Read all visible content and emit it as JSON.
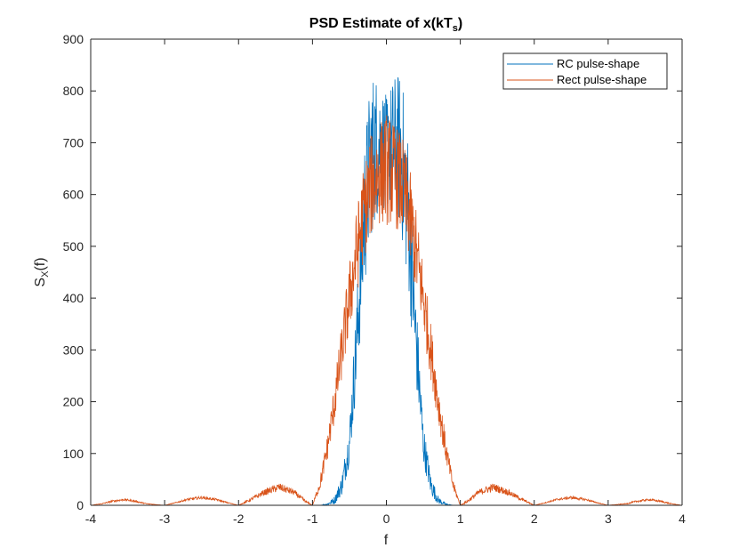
{
  "chart_data": {
    "type": "line",
    "title": {
      "main": "PSD  Estimate  of  x(kT",
      "sub": "s",
      "close": ")"
    },
    "xlabel": "f",
    "ylabel": {
      "main": "S",
      "sub": "X",
      "rest": "(f)"
    },
    "xlim": [
      -4,
      4
    ],
    "ylim": [
      0,
      900
    ],
    "xticks": [
      -4,
      -3,
      -2,
      -1,
      0,
      1,
      2,
      3,
      4
    ],
    "xtick_labels": [
      "-4",
      "-3",
      "-2",
      "-1",
      "0",
      "1",
      "2",
      "3",
      "4"
    ],
    "yticks": [
      0,
      100,
      200,
      300,
      400,
      500,
      600,
      700,
      800,
      900
    ],
    "ytick_labels": [
      "0",
      "100",
      "200",
      "300",
      "400",
      "500",
      "600",
      "700",
      "800",
      "900"
    ],
    "grid": false,
    "legend_position": "top-right",
    "series": [
      {
        "name": "RC pulse-shape",
        "color": "#0072BD",
        "x": [
          -4,
          -1.0,
          -0.9,
          -0.8,
          -0.7,
          -0.6,
          -0.5,
          -0.4,
          -0.3,
          -0.2,
          -0.1,
          0.0,
          0.1,
          0.2,
          0.3,
          0.4,
          0.5,
          0.6,
          0.7,
          0.8,
          0.9,
          1.0,
          4
        ],
        "y": [
          0,
          0,
          0,
          2,
          10,
          40,
          120,
          320,
          560,
          680,
          700,
          680,
          700,
          680,
          560,
          320,
          120,
          40,
          10,
          2,
          0,
          0,
          0
        ],
        "spread": [
          0,
          0,
          0,
          2,
          8,
          20,
          40,
          90,
          150,
          160,
          130,
          110,
          130,
          160,
          150,
          90,
          40,
          20,
          8,
          2,
          0,
          0,
          0
        ]
      },
      {
        "name": "Rect pulse-shape",
        "color": "#D95319",
        "x": [
          -4,
          -3.85,
          -3.7,
          -3.55,
          -3.4,
          -3.25,
          -3.0,
          -2.85,
          -2.7,
          -2.5,
          -2.3,
          -2.15,
          -2.0,
          -1.85,
          -1.65,
          -1.45,
          -1.25,
          -1.1,
          -1.0,
          -0.9,
          -0.8,
          -0.7,
          -0.6,
          -0.5,
          -0.4,
          -0.3,
          -0.2,
          -0.1,
          0.0,
          0.1,
          0.2,
          0.3,
          0.4,
          0.5,
          0.6,
          0.7,
          0.8,
          0.9,
          1.0,
          1.1,
          1.25,
          1.45,
          1.65,
          1.85,
          2.0,
          2.15,
          2.3,
          2.5,
          2.7,
          2.85,
          3.0,
          3.25,
          3.4,
          3.55,
          3.7,
          3.85,
          4.0
        ],
        "y": [
          0,
          3,
          8,
          11,
          8,
          3,
          0,
          5,
          11,
          15,
          11,
          5,
          0,
          10,
          25,
          35,
          25,
          8,
          0,
          40,
          110,
          200,
          300,
          400,
          490,
          570,
          620,
          640,
          650,
          640,
          620,
          570,
          490,
          400,
          300,
          200,
          110,
          40,
          0,
          8,
          25,
          35,
          25,
          10,
          0,
          5,
          11,
          15,
          11,
          5,
          0,
          3,
          8,
          11,
          8,
          3,
          0
        ],
        "spread": [
          0,
          1,
          2,
          2,
          2,
          1,
          0,
          1,
          2,
          3,
          2,
          1,
          0,
          3,
          6,
          8,
          6,
          3,
          0,
          12,
          25,
          40,
          55,
          70,
          85,
          95,
          100,
          100,
          110,
          100,
          100,
          95,
          85,
          70,
          55,
          40,
          25,
          12,
          0,
          3,
          6,
          8,
          6,
          3,
          0,
          1,
          2,
          3,
          2,
          1,
          0,
          1,
          2,
          2,
          2,
          1,
          0
        ]
      }
    ]
  }
}
